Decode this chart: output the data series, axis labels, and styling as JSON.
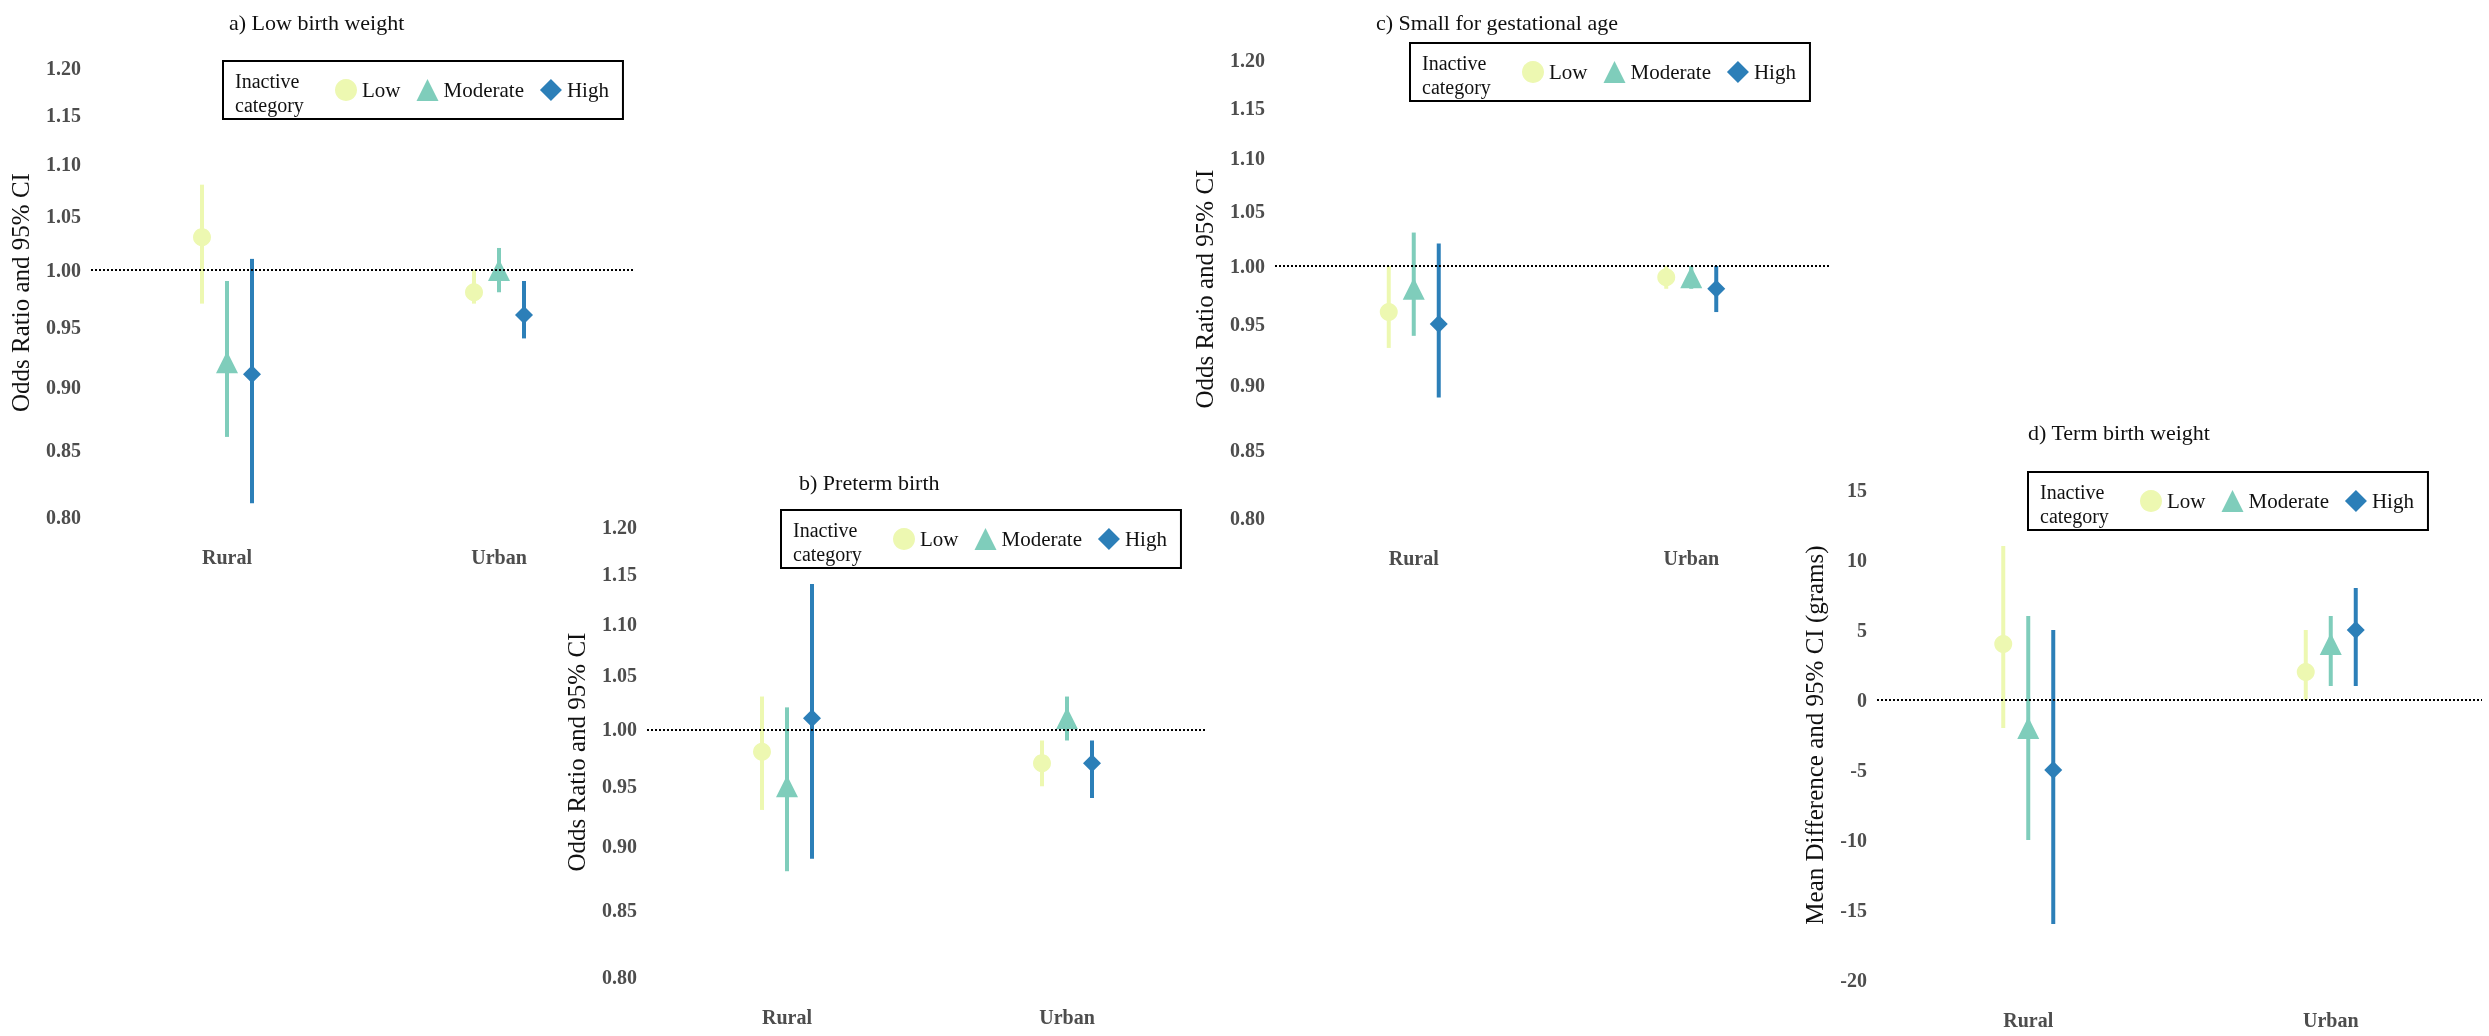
{
  "chart_data": [
    {
      "type": "scatter",
      "title": "a) Low birth weight",
      "ylabel": "Odds Ratio and 95% CI",
      "legend_title": "Inactive category",
      "categories": [
        "Rural",
        "Urban"
      ],
      "log": "y",
      "ylim": [
        0.8,
        1.2
      ],
      "yticks": [
        {
          "value": 0.8,
          "label": "0.80"
        },
        0.85,
        {
          "value": 0.9,
          "label": "0.90"
        },
        0.95,
        {
          "value": 1,
          "label": "1.00"
        },
        1.05,
        {
          "value": 1.1,
          "label": "1.10"
        },
        1.15,
        {
          "value": 1.2,
          "label": "1.20"
        }
      ],
      "grid": false,
      "legend": "top right",
      "ref_lines": [
        {
          "axis": "y",
          "value": 1,
          "label": null,
          "color": "#000000",
          "line_style": "dotted"
        }
      ],
      "series": [
        {
          "name": "Low",
          "color": "#edf8b1",
          "marker": "circle",
          "values": [
            1.03,
            0.98
          ],
          "errors": [
            [
              0.97,
              1.08
            ],
            [
              0.97,
              1.0
            ]
          ]
        },
        {
          "name": "Moderate",
          "color": "#7fcdbb",
          "marker": "triangle",
          "values": [
            0.92,
            1.0
          ],
          "errors": [
            [
              0.86,
              0.99
            ],
            [
              0.98,
              1.02
            ]
          ]
        },
        {
          "name": "High",
          "color": "#2c7fb8",
          "marker": "diamond",
          "values": [
            0.91,
            0.96
          ],
          "errors": [
            [
              0.81,
              1.01
            ],
            [
              0.94,
              0.99
            ]
          ]
        }
      ]
    },
    {
      "type": "scatter",
      "title": "b) Preterm birth",
      "ylabel": "Odds Ratio and 95% CI",
      "legend_title": "Inactive category",
      "categories": [
        "Rural",
        "Urban"
      ],
      "log": "y",
      "ylim": [
        0.8,
        1.2
      ],
      "yticks": [
        {
          "value": 0.8,
          "label": "0.80"
        },
        0.85,
        {
          "value": 0.9,
          "label": "0.90"
        },
        0.95,
        {
          "value": 1,
          "label": "1.00"
        },
        1.05,
        {
          "value": 1.1,
          "label": "1.10"
        },
        1.15,
        {
          "value": 1.2,
          "label": "1.20"
        }
      ],
      "grid": false,
      "legend": "top right",
      "ref_lines": [
        {
          "axis": "y",
          "value": 1,
          "label": null,
          "color": "#000000",
          "line_style": "dotted"
        }
      ],
      "series": [
        {
          "name": "Low",
          "color": "#edf8b1",
          "marker": "circle",
          "values": [
            0.98,
            0.97
          ],
          "errors": [
            [
              0.93,
              1.03
            ],
            [
              0.95,
              0.99
            ]
          ]
        },
        {
          "name": "Moderate",
          "color": "#7fcdbb",
          "marker": "triangle",
          "values": [
            0.95,
            1.01
          ],
          "errors": [
            [
              0.88,
              1.02
            ],
            [
              0.99,
              1.03
            ]
          ]
        },
        {
          "name": "High",
          "color": "#2c7fb8",
          "marker": "diamond",
          "values": [
            1.01,
            0.97
          ],
          "errors": [
            [
              0.89,
              1.14
            ],
            [
              0.94,
              0.99
            ]
          ]
        }
      ]
    },
    {
      "type": "scatter",
      "title": "c) Small for gestational age",
      "ylabel": "Odds Ratio and 95% CI",
      "legend_title": "Inactive category",
      "categories": [
        "Rural",
        "Urban"
      ],
      "log": "y",
      "ylim": [
        0.8,
        1.2
      ],
      "yticks": [
        {
          "value": 0.8,
          "label": "0.80"
        },
        0.85,
        {
          "value": 0.9,
          "label": "0.90"
        },
        0.95,
        {
          "value": 1,
          "label": "1.00"
        },
        1.05,
        {
          "value": 1.1,
          "label": "1.10"
        },
        1.15,
        {
          "value": 1.2,
          "label": "1.20"
        }
      ],
      "grid": false,
      "legend": "top right",
      "ref_lines": [
        {
          "axis": "y",
          "value": 1,
          "label": null,
          "color": "#000000",
          "line_style": "dotted"
        }
      ],
      "series": [
        {
          "name": "Low",
          "color": "#edf8b1",
          "marker": "circle",
          "values": [
            0.96,
            0.99
          ],
          "errors": [
            [
              0.93,
              1.0
            ],
            [
              0.98,
              1.0
            ]
          ]
        },
        {
          "name": "Moderate",
          "color": "#7fcdbb",
          "marker": "triangle",
          "values": [
            0.98,
            0.99
          ],
          "errors": [
            [
              0.94,
              1.03
            ],
            [
              0.98,
              1.0
            ]
          ]
        },
        {
          "name": "High",
          "color": "#2c7fb8",
          "marker": "diamond",
          "values": [
            0.95,
            0.98
          ],
          "errors": [
            [
              0.89,
              1.02
            ],
            [
              0.96,
              1.0
            ]
          ]
        }
      ]
    },
    {
      "type": "scatter",
      "title": "d) Term birth weight",
      "ylabel": "Mean Difference and 95% CI (grams)",
      "legend_title": "Inactive category",
      "categories": [
        "Rural",
        "Urban"
      ],
      "ylim": [
        -20,
        15
      ],
      "yticks": [
        -20,
        -15,
        -10,
        -5,
        0,
        5,
        10,
        15
      ],
      "grid": false,
      "legend": "top right",
      "ref_lines": [
        {
          "axis": "y",
          "value": 0,
          "label": null,
          "color": "#000000",
          "line_style": "dotted"
        }
      ],
      "series": [
        {
          "name": "Low",
          "color": "#edf8b1",
          "marker": "circle",
          "values": [
            4,
            2
          ],
          "errors": [
            [
              -2,
              11
            ],
            [
              0,
              5
            ]
          ]
        },
        {
          "name": "Moderate",
          "color": "#7fcdbb",
          "marker": "triangle",
          "values": [
            -2,
            4
          ],
          "errors": [
            [
              -10,
              6
            ],
            [
              1,
              6
            ]
          ]
        },
        {
          "name": "High",
          "color": "#2c7fb8",
          "marker": "diamond",
          "values": [
            -5,
            5
          ],
          "errors": [
            [
              -16,
              5
            ],
            [
              1,
              8
            ]
          ]
        }
      ]
    }
  ]
}
